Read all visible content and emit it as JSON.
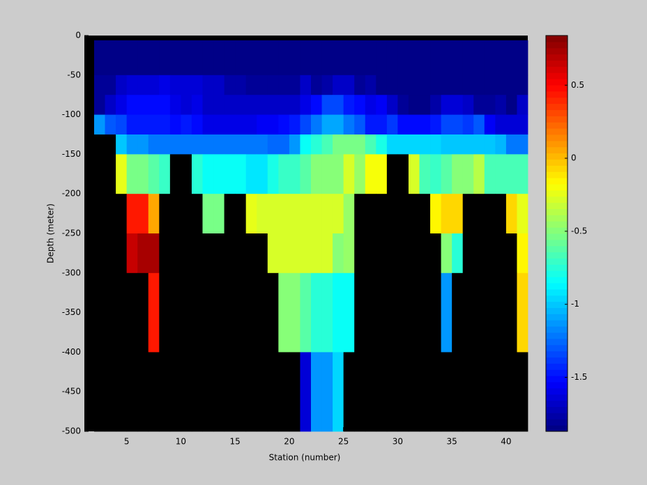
{
  "chart_data": {
    "type": "heatmap",
    "x_label": "Station (number)",
    "y_label": "Depth (meter)",
    "x": [
      2,
      3,
      4,
      5,
      6,
      7,
      8,
      9,
      10,
      11,
      12,
      13,
      14,
      15,
      16,
      17,
      18,
      19,
      20,
      21,
      22,
      23,
      24,
      25,
      26,
      27,
      28,
      29,
      30,
      31,
      32,
      33,
      34,
      35,
      36,
      37,
      38,
      39,
      40,
      41,
      42
    ],
    "y": [
      -6,
      -50,
      -75,
      -100,
      -125,
      -150,
      -200,
      -250,
      -300,
      -400,
      -500
    ],
    "values": [
      [
        -1.85,
        -1.85,
        -1.85,
        -1.85,
        -1.85,
        -1.85,
        -1.85,
        -1.85,
        -1.85,
        -1.85,
        -1.85,
        -1.85,
        -1.85,
        -1.85,
        -1.85,
        -1.85,
        -1.85,
        -1.85,
        -1.85,
        -1.85,
        -1.85,
        -1.85,
        -1.85,
        -1.85,
        -1.85,
        -1.85,
        -1.85,
        -1.85,
        -1.85,
        -1.85,
        -1.85,
        -1.85,
        -1.85,
        -1.85,
        -1.85,
        -1.85,
        -1.85,
        -1.85,
        -1.85,
        -1.85
      ],
      [
        -1.8,
        -1.8,
        -1.7,
        -1.65,
        -1.65,
        -1.65,
        -1.6,
        -1.65,
        -1.65,
        -1.65,
        -1.7,
        -1.7,
        -1.75,
        -1.75,
        -1.8,
        -1.8,
        -1.8,
        -1.8,
        -1.8,
        -1.7,
        -1.8,
        -1.75,
        -1.7,
        -1.7,
        -1.8,
        -1.75,
        -1.85,
        -1.85,
        -1.85,
        -1.85,
        -1.85,
        -1.85,
        -1.85,
        -1.85,
        -1.85,
        -1.85,
        -1.85,
        -1.85,
        -1.85,
        -1.85
      ],
      [
        -1.8,
        -1.7,
        -1.6,
        -1.5,
        -1.5,
        -1.5,
        -1.5,
        -1.6,
        -1.65,
        -1.6,
        -1.7,
        -1.7,
        -1.7,
        -1.7,
        -1.7,
        -1.7,
        -1.7,
        -1.7,
        -1.7,
        -1.6,
        -1.5,
        -1.35,
        -1.35,
        -1.45,
        -1.5,
        -1.6,
        -1.55,
        -1.7,
        -1.8,
        -1.85,
        -1.85,
        -1.75,
        -1.65,
        -1.65,
        -1.7,
        -1.8,
        -1.8,
        -1.75,
        -1.85,
        -1.7
      ],
      [
        -1.15,
        -1.3,
        -1.35,
        -1.45,
        -1.45,
        -1.45,
        -1.45,
        -1.5,
        -1.45,
        -1.5,
        -1.6,
        -1.6,
        -1.6,
        -1.6,
        -1.6,
        -1.55,
        -1.55,
        -1.5,
        -1.45,
        -1.35,
        -1.2,
        -1.1,
        -1.1,
        -1.2,
        -1.3,
        -1.45,
        -1.45,
        -1.4,
        -1.5,
        -1.5,
        -1.5,
        -1.45,
        -1.35,
        -1.35,
        -1.4,
        -1.3,
        -1.55,
        -1.65,
        -1.65,
        -1.65
      ],
      [
        null,
        null,
        -1.0,
        -1.15,
        -1.15,
        -1.2,
        -1.2,
        -1.2,
        -1.2,
        -1.2,
        -1.2,
        -1.2,
        -1.2,
        -1.2,
        -1.2,
        -1.2,
        -1.25,
        -1.25,
        -1.15,
        -0.85,
        -0.75,
        -0.65,
        -0.55,
        -0.55,
        -0.55,
        -0.65,
        -0.8,
        -0.95,
        -0.95,
        -0.95,
        -0.95,
        -0.95,
        -1.0,
        -1.0,
        -1.0,
        -1.0,
        -1.0,
        -1.05,
        -1.2,
        -1.2
      ],
      [
        null,
        null,
        -0.25,
        -0.55,
        -0.55,
        -0.6,
        -0.7,
        null,
        null,
        -0.75,
        -0.85,
        -0.85,
        -0.85,
        -0.85,
        -0.9,
        -0.9,
        -0.8,
        -0.7,
        -0.7,
        -0.6,
        -0.5,
        -0.5,
        -0.5,
        -0.3,
        -0.45,
        -0.2,
        -0.2,
        null,
        null,
        -0.3,
        -0.65,
        -0.7,
        -0.6,
        -0.5,
        -0.5,
        -0.35,
        -0.65,
        -0.65,
        -0.65,
        -0.65
      ],
      [
        null,
        null,
        null,
        0.45,
        0.45,
        0.05,
        null,
        null,
        null,
        null,
        -0.55,
        -0.55,
        null,
        null,
        -0.25,
        -0.3,
        -0.3,
        -0.3,
        -0.3,
        -0.3,
        -0.3,
        -0.3,
        -0.3,
        -0.45,
        null,
        null,
        null,
        null,
        null,
        null,
        null,
        -0.15,
        -0.05,
        -0.05,
        null,
        null,
        null,
        null,
        -0.05,
        -0.25
      ],
      [
        null,
        null,
        null,
        0.65,
        0.75,
        0.75,
        null,
        null,
        null,
        null,
        null,
        null,
        null,
        null,
        null,
        null,
        -0.3,
        -0.3,
        -0.3,
        -0.3,
        -0.3,
        -0.3,
        -0.5,
        -0.45,
        null,
        null,
        null,
        null,
        null,
        null,
        null,
        null,
        -0.5,
        -0.75,
        null,
        null,
        null,
        null,
        null,
        -0.15
      ],
      [
        null,
        null,
        null,
        null,
        null,
        0.45,
        null,
        null,
        null,
        null,
        null,
        null,
        null,
        null,
        null,
        null,
        null,
        -0.5,
        -0.5,
        -0.6,
        -0.75,
        -0.75,
        -0.85,
        -0.85,
        null,
        null,
        null,
        null,
        null,
        null,
        null,
        null,
        -1.15,
        null,
        null,
        null,
        null,
        null,
        null,
        -0.05
      ],
      [
        null,
        null,
        null,
        null,
        null,
        null,
        null,
        null,
        null,
        null,
        null,
        null,
        null,
        null,
        null,
        null,
        null,
        null,
        null,
        -1.65,
        -1.15,
        -1.15,
        -0.95,
        null,
        null,
        null,
        null,
        null,
        null,
        null,
        null,
        null,
        null,
        null,
        null,
        null,
        null,
        null,
        null,
        null
      ]
    ],
    "xlim": [
      1.1,
      42
    ],
    "xticks": [
      5,
      10,
      15,
      20,
      25,
      30,
      35,
      40
    ],
    "ylim": [
      -500,
      0
    ],
    "yticks": [
      0,
      -50,
      -100,
      -150,
      -200,
      -250,
      -300,
      -350,
      -400,
      -450,
      -500
    ],
    "colormap": "jet",
    "color_levels": 64,
    "nan_color": "#000000",
    "clim": [
      -1.87,
      0.84
    ],
    "cticks": [
      0.5,
      0,
      -0.5,
      -1,
      -1.5
    ]
  }
}
